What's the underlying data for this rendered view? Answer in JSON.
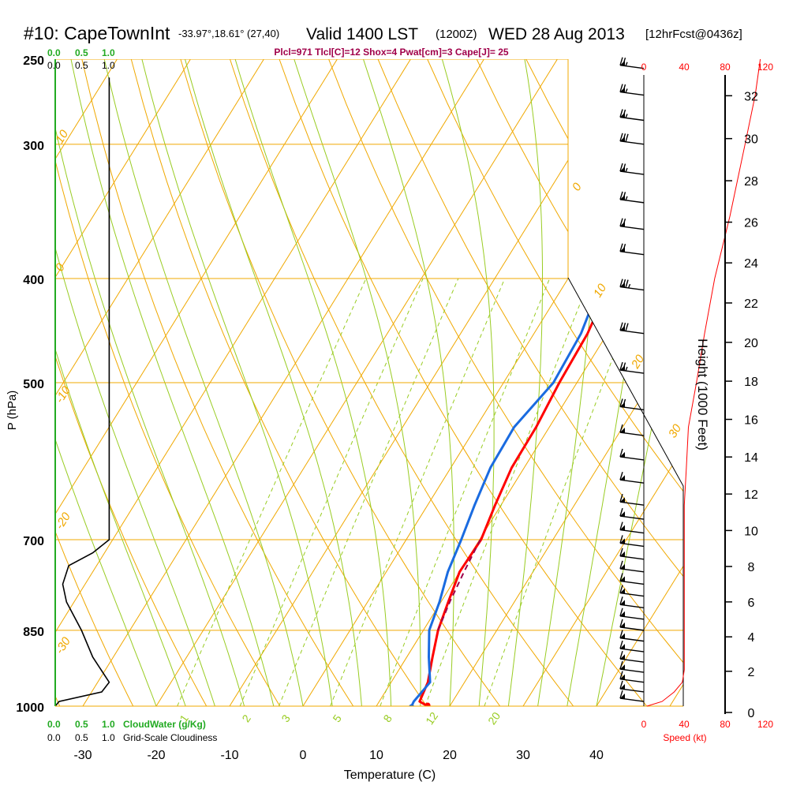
{
  "header": {
    "station": "#10: CapeTownInt",
    "coords": "-33.97°,18.61° (27,40)",
    "valid": "Valid 1400 LST",
    "utc": "(1200Z)",
    "date": "WED 28 Aug 2013",
    "forecast": "[12hrFcst@0436z]",
    "indices": "Plcl=971 Tlcl[C]=12 Shox=4 Pwat[cm]=3 Cape[J]= 25"
  },
  "colors": {
    "isotherm": "#f0a800",
    "mixing": "#99cc22",
    "temperature": "#ff0000",
    "dewpoint": "#1a6be0",
    "cloud": "#000000",
    "height": "#ff0000"
  },
  "chart_data": {
    "type": "line",
    "subtype": "skew-T log-P sounding",
    "xlabel": "Temperature (C)",
    "ylabel": "P (hPa)",
    "x_ticks": [
      -30,
      -20,
      -10,
      0,
      10,
      20,
      30,
      40
    ],
    "y_ticks": [
      250,
      300,
      400,
      500,
      700,
      850,
      1000
    ],
    "skewed_isotherm_labels": [
      "10",
      "0",
      "-10",
      "-20",
      "-30",
      "0",
      "10",
      "20",
      "30"
    ],
    "mixing_ratio_labels": [
      "1",
      "2",
      "3",
      "5",
      "8",
      "12",
      "20"
    ],
    "series": [
      {
        "name": "temperature",
        "points": [
          [
            1000,
            17.0
          ],
          [
            990,
            15.5
          ],
          [
            950,
            15.0
          ],
          [
            900,
            13.5
          ],
          [
            850,
            12.0
          ],
          [
            800,
            11.0
          ],
          [
            750,
            10.0
          ],
          [
            700,
            10.2
          ],
          [
            650,
            9.2
          ],
          [
            600,
            8.3
          ],
          [
            550,
            8.2
          ],
          [
            500,
            7.6
          ],
          [
            450,
            7.3
          ],
          [
            400,
            6.0
          ],
          [
            370,
            3.3
          ],
          [
            350,
            1.3
          ],
          [
            300,
            -2.5
          ],
          [
            280,
            -4.0
          ],
          [
            260,
            -5.0
          ]
        ]
      },
      {
        "name": "dewpoint",
        "points": [
          [
            1000,
            14.8
          ],
          [
            990,
            14.7
          ],
          [
            950,
            15.3
          ],
          [
            900,
            13.0
          ],
          [
            850,
            10.8
          ],
          [
            800,
            9.8
          ],
          [
            750,
            8.4
          ],
          [
            700,
            7.5
          ],
          [
            650,
            6.4
          ],
          [
            600,
            5.4
          ],
          [
            550,
            5.2
          ],
          [
            500,
            6.8
          ],
          [
            450,
            6.4
          ],
          [
            400,
            4.7
          ],
          [
            370,
            1.2
          ],
          [
            350,
            -1.5
          ],
          [
            300,
            -6.5
          ],
          [
            280,
            -8.0
          ],
          [
            260,
            -8.8
          ]
        ]
      },
      {
        "name": "parcel",
        "points": [
          [
            850,
            12.0
          ],
          [
            800,
            11.2
          ],
          [
            750,
            10.6
          ],
          [
            700,
            10.1
          ]
        ]
      },
      {
        "name": "cloud water",
        "points": [
          [
            1000,
            0.0
          ],
          [
            990,
            0.05
          ],
          [
            970,
            0.62
          ],
          [
            950,
            0.72
          ],
          [
            900,
            0.5
          ],
          [
            850,
            0.35
          ],
          [
            800,
            0.15
          ],
          [
            770,
            0.1
          ],
          [
            740,
            0.18
          ],
          [
            720,
            0.5
          ],
          [
            700,
            0.72
          ],
          [
            650,
            0.72
          ],
          [
            600,
            0.72
          ],
          [
            500,
            0.72
          ],
          [
            400,
            0.72
          ],
          [
            300,
            0.72
          ],
          [
            260,
            0.72
          ]
        ]
      }
    ],
    "cloud_axis": {
      "top_green": [
        "0.0",
        "0.5",
        "1.0"
      ],
      "top_black": [
        "0.0",
        "0.5",
        "1.0"
      ],
      "bottom_green": [
        "0.0",
        "0.5",
        "1.0"
      ],
      "bottom_black": [
        "0.0",
        "0.5",
        "1.0"
      ],
      "green_label": "CloudWater (g/Kg)",
      "black_label": "Grid-Scale Cloudiness"
    },
    "speed_axis": {
      "ticks": [
        "0",
        "40",
        "80",
        "120"
      ],
      "label": "Speed (kt)"
    },
    "height_axis": {
      "label": "Height (1000 Feet)",
      "ticks": [
        0,
        2,
        4,
        6,
        8,
        10,
        12,
        14,
        16,
        18,
        20,
        22,
        24,
        26,
        28,
        30,
        32
      ]
    },
    "wind_speed_profile": [
      [
        1000,
        3
      ],
      [
        990,
        18
      ],
      [
        970,
        30
      ],
      [
        950,
        38
      ],
      [
        925,
        40
      ],
      [
        900,
        40
      ],
      [
        850,
        40
      ],
      [
        800,
        40
      ],
      [
        700,
        40
      ],
      [
        650,
        40
      ],
      [
        600,
        42
      ],
      [
        550,
        44
      ],
      [
        500,
        52
      ],
      [
        450,
        60
      ],
      [
        400,
        70
      ],
      [
        350,
        85
      ],
      [
        300,
        100
      ],
      [
        270,
        110
      ],
      [
        250,
        115
      ]
    ],
    "wind_barbs": [
      {
        "p": 255,
        "kt": 25
      },
      {
        "p": 270,
        "kt": 25
      },
      {
        "p": 285,
        "kt": 25
      },
      {
        "p": 300,
        "kt": 30
      },
      {
        "p": 320,
        "kt": 25
      },
      {
        "p": 340,
        "kt": 25
      },
      {
        "p": 360,
        "kt": 20
      },
      {
        "p": 380,
        "kt": 20
      },
      {
        "p": 410,
        "kt": 35
      },
      {
        "p": 450,
        "kt": 30
      },
      {
        "p": 490,
        "kt": 25
      },
      {
        "p": 530,
        "kt": 20
      },
      {
        "p": 560,
        "kt": 15
      },
      {
        "p": 590,
        "kt": 15
      },
      {
        "p": 620,
        "kt": 10
      },
      {
        "p": 650,
        "kt": 10
      },
      {
        "p": 670,
        "kt": 10
      },
      {
        "p": 690,
        "kt": 10
      },
      {
        "p": 710,
        "kt": 10
      },
      {
        "p": 730,
        "kt": 10
      },
      {
        "p": 750,
        "kt": 10
      },
      {
        "p": 770,
        "kt": 10
      },
      {
        "p": 790,
        "kt": 10
      },
      {
        "p": 810,
        "kt": 10
      },
      {
        "p": 830,
        "kt": 10
      },
      {
        "p": 850,
        "kt": 10
      },
      {
        "p": 870,
        "kt": 10
      },
      {
        "p": 890,
        "kt": 10
      },
      {
        "p": 910,
        "kt": 10
      },
      {
        "p": 930,
        "kt": 10
      },
      {
        "p": 950,
        "kt": 15
      },
      {
        "p": 970,
        "kt": 15
      },
      {
        "p": 990,
        "kt": 15
      }
    ]
  }
}
